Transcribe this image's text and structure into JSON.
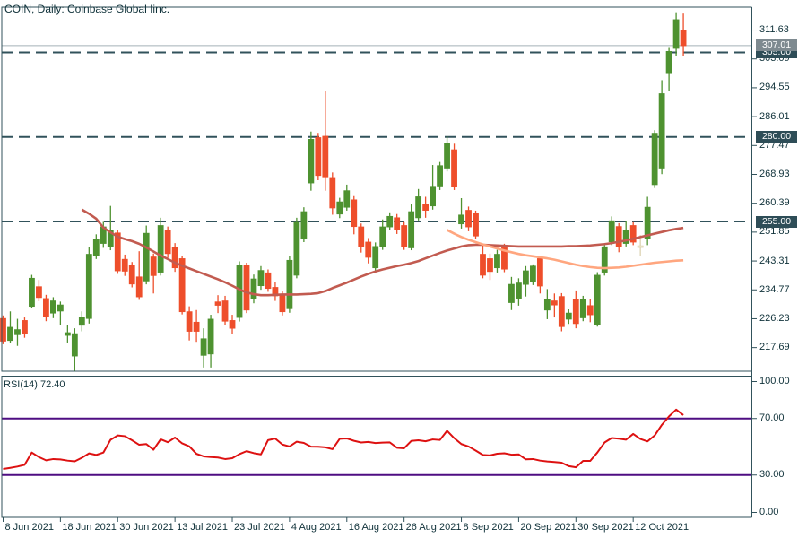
{
  "title": "COIN, Daily:  Coinbase Global Iinc.",
  "rsi_label": "RSI(14) 72.40",
  "price_scale": {
    "ticks": [
      "311.63",
      "303.09",
      "294.55",
      "286.01",
      "277.47",
      "268.93",
      "260.39",
      "251.85",
      "243.31",
      "234.77",
      "226.23",
      "217.69"
    ],
    "badges": {
      "current": {
        "label": "307.01"
      },
      "levels": [
        {
          "label": "305.00"
        },
        {
          "label": "280.00"
        },
        {
          "label": "255.00"
        }
      ]
    }
  },
  "time_scale": {
    "labels": [
      "8 Jun 2021",
      "18 Jun 2021",
      "30 Jun 2021",
      "13 Jul 2021",
      "23 Jul 2021",
      "4 Aug 2021",
      "16 Aug 2021",
      "26 Aug 2021",
      "8 Sep 2021",
      "20 Sep 2021",
      "30 Sep 2021",
      "12 Oct 2021"
    ],
    "indices": [
      0,
      8,
      16,
      24,
      32,
      40,
      48,
      56,
      64,
      72,
      80,
      88
    ]
  },
  "colors": {
    "background": "#ffffff",
    "frame": "#31525b",
    "axis_text": "#10323a",
    "bull": "#4e9230",
    "bear": "#ee4e2b",
    "pale_doji_fill": "#f3eeda",
    "pale_doji_edge": "#ddd3b2",
    "level_line": "#31525b",
    "current_line": "#a4b1b8",
    "badge_level_bg": "#2e4d57",
    "badge_current_bg": "#7e8a90",
    "ma_slow": "#c25b50",
    "ma_fast": "#ffa67f",
    "rsi_line": "#dd1111",
    "rsi_level": "#4e0d82"
  },
  "chart_data": {
    "type": "candlestick",
    "symbol": "COIN",
    "timeframe": "Daily",
    "company": "Coinbase Global Iinc.",
    "ylim": [
      210.7,
      318.4
    ],
    "levels_dashed": [
      305.0,
      280.0,
      255.0
    ],
    "current_price": 307.01,
    "dates": [
      "8 Jun 2021",
      "9 Jun 2021",
      "10 Jun 2021",
      "11 Jun 2021",
      "14 Jun 2021",
      "15 Jun 2021",
      "16 Jun 2021",
      "17 Jun 2021",
      "18 Jun 2021",
      "21 Jun 2021",
      "22 Jun 2021",
      "23 Jun 2021",
      "24 Jun 2021",
      "25 Jun 2021",
      "28 Jun 2021",
      "29 Jun 2021",
      "30 Jun 2021",
      "1 Jul 2021",
      "2 Jul 2021",
      "6 Jul 2021",
      "7 Jul 2021",
      "8 Jul 2021",
      "9 Jul 2021",
      "12 Jul 2021",
      "13 Jul 2021",
      "14 Jul 2021",
      "15 Jul 2021",
      "16 Jul 2021",
      "19 Jul 2021",
      "20 Jul 2021",
      "21 Jul 2021",
      "22 Jul 2021",
      "23 Jul 2021",
      "26 Jul 2021",
      "27 Jul 2021",
      "28 Jul 2021",
      "29 Jul 2021",
      "30 Jul 2021",
      "2 Aug 2021",
      "3 Aug 2021",
      "4 Aug 2021",
      "5 Aug 2021",
      "6 Aug 2021",
      "9 Aug 2021",
      "10 Aug 2021",
      "11 Aug 2021",
      "12 Aug 2021",
      "13 Aug 2021",
      "16 Aug 2021",
      "17 Aug 2021",
      "18 Aug 2021",
      "19 Aug 2021",
      "20 Aug 2021",
      "23 Aug 2021",
      "24 Aug 2021",
      "25 Aug 2021",
      "26 Aug 2021",
      "27 Aug 2021",
      "30 Aug 2021",
      "31 Aug 2021",
      "1 Sep 2021",
      "2 Sep 2021",
      "3 Sep 2021",
      "7 Sep 2021",
      "8 Sep 2021",
      "9 Sep 2021",
      "10 Sep 2021",
      "13 Sep 2021",
      "14 Sep 2021",
      "15 Sep 2021",
      "16 Sep 2021",
      "17 Sep 2021",
      "20 Sep 2021",
      "21 Sep 2021",
      "22 Sep 2021",
      "23 Sep 2021",
      "24 Sep 2021",
      "27 Sep 2021",
      "28 Sep 2021",
      "29 Sep 2021",
      "30 Sep 2021",
      "1 Oct 2021",
      "4 Oct 2021",
      "5 Oct 2021",
      "6 Oct 2021",
      "7 Oct 2021",
      "8 Oct 2021",
      "11 Oct 2021",
      "12 Oct 2021",
      "13 Oct 2021",
      "14 Oct 2021",
      "15 Oct 2021",
      "18 Oct 2021",
      "19 Oct 2021",
      "20 Oct 2021",
      "21 Oct 2021"
    ],
    "open": [
      226.3,
      219.8,
      221.5,
      225.7,
      229.9,
      235.7,
      232.2,
      227.9,
      228.5,
      221.3,
      215.2,
      224.3,
      226.3,
      244.9,
      248.5,
      247.6,
      251.6,
      243.8,
      242.0,
      238.6,
      237.4,
      244.5,
      240.0,
      252.3,
      247.2,
      244.0,
      228.3,
      225.2,
      215.4,
      215.8,
      231.2,
      231.5,
      225.7,
      226.6,
      241.9,
      232.2,
      236.0,
      239.8,
      235.5,
      233.2,
      229.2,
      239.1,
      249.8,
      266.4,
      279.8,
      280.2,
      268.0,
      257.2,
      259.2,
      261.4,
      253.4,
      248.9,
      241.3,
      247.6,
      253.4,
      256.1,
      253.8,
      247.2,
      256.1,
      260.1,
      259.6,
      265.5,
      270.8,
      276.2,
      254.3,
      258.3,
      257.4,
      245.3,
      244.0,
      241.3,
      247.6,
      231.0,
      232.3,
      236.4,
      237.3,
      244.0,
      228.8,
      231.5,
      232.8,
      226.1,
      231.9,
      226.5,
      230.1,
      224.5,
      240.0,
      249.0,
      253.5,
      248.5,
      253.8,
      247.3,
      249.8,
      265.9,
      270.8,
      299.0,
      306.2,
      311.5
    ],
    "high": [
      227.2,
      228.4,
      226.2,
      226.6,
      239.2,
      237.7,
      233.3,
      232.6,
      231.3,
      224.3,
      223.4,
      228.4,
      247.4,
      251.2,
      254.9,
      259.6,
      252.5,
      245.2,
      243.0,
      246.2,
      253.8,
      245.5,
      256.1,
      253.5,
      248.6,
      244.8,
      229.9,
      228.8,
      223.4,
      227.4,
      233.2,
      233.0,
      227.4,
      243.2,
      242.8,
      239.3,
      241.8,
      240.8,
      237.0,
      234.3,
      244.9,
      256.1,
      259.2,
      281.6,
      281.2,
      293.6,
      269.5,
      262.0,
      265.9,
      262.5,
      254.4,
      250.1,
      248.8,
      255.6,
      257.7,
      257.2,
      254.8,
      260.1,
      264.6,
      262.3,
      271.7,
      272.6,
      280.2,
      278.0,
      261.9,
      259.4,
      258.2,
      248.0,
      245.5,
      246.6,
      248.4,
      238.6,
      238.2,
      241.8,
      242.3,
      244.9,
      235.0,
      233.7,
      233.8,
      229.0,
      234.6,
      233.0,
      232.0,
      240.0,
      248.5,
      256.5,
      254.5,
      255.2,
      254.8,
      251.0,
      262.3,
      282.0,
      296.8,
      306.6,
      316.9,
      316.5
    ],
    "low": [
      218.7,
      219.0,
      218.2,
      220.6,
      229.3,
      231.4,
      225.5,
      226.4,
      224.3,
      219.2,
      210.4,
      222.5,
      224.8,
      243.9,
      247.2,
      246.5,
      239.5,
      238.9,
      235.5,
      231.8,
      236.4,
      233.7,
      239.0,
      244.3,
      240.1,
      227.5,
      219.8,
      219.4,
      211.8,
      211.8,
      227.9,
      224.4,
      221.6,
      225.4,
      227.9,
      230.8,
      234.8,
      234.2,
      231.5,
      227.2,
      228.0,
      238.2,
      248.9,
      264.1,
      267.2,
      264.1,
      257.0,
      256.0,
      258.2,
      251.2,
      245.8,
      242.6,
      240.3,
      246.6,
      252.4,
      251.3,
      246.6,
      246.5,
      255.3,
      256.1,
      258.5,
      264.3,
      269.8,
      264.3,
      252.9,
      252.1,
      249.8,
      238.2,
      237.7,
      239.9,
      240.0,
      228.8,
      230.1,
      232.8,
      236.2,
      233.7,
      226.1,
      226.6,
      222.5,
      224.7,
      223.4,
      225.5,
      225.2,
      223.9,
      239.0,
      248.0,
      245.9,
      247.6,
      248.0,
      244.9,
      248.0,
      264.9,
      269.0,
      293.6,
      303.9,
      304.0
    ],
    "close": [
      219.6,
      223.7,
      223.0,
      221.9,
      238.2,
      232.5,
      226.8,
      231.5,
      230.3,
      222.1,
      221.8,
      226.6,
      245.3,
      249.8,
      253.4,
      252.5,
      240.4,
      240.3,
      236.5,
      232.7,
      251.5,
      239.0,
      253.8,
      245.5,
      241.3,
      228.3,
      222.5,
      222.5,
      220.3,
      226.1,
      230.2,
      225.5,
      223.4,
      242.1,
      228.8,
      238.0,
      240.5,
      235.2,
      233.0,
      228.3,
      243.5,
      254.7,
      257.9,
      279.3,
      268.6,
      268.2,
      259.0,
      260.8,
      264.1,
      253.5,
      247.6,
      244.4,
      247.6,
      253.4,
      256.5,
      252.5,
      247.6,
      257.9,
      262.3,
      258.3,
      265.4,
      271.5,
      278.0,
      265.4,
      256.9,
      253.4,
      250.7,
      239.1,
      240.2,
      245.3,
      240.9,
      236.4,
      236.8,
      240.4,
      241.8,
      235.9,
      231.9,
      230.3,
      223.9,
      227.9,
      224.8,
      231.9,
      227.4,
      239.1,
      247.5,
      255.2,
      247.5,
      252.5,
      248.9,
      247.8,
      259.2,
      281.1,
      292.8,
      305.3,
      314.7,
      307.0
    ],
    "pale_doji_indices": [
      89
    ],
    "overlays": [
      {
        "name": "ma-slow",
        "start_index": 11,
        "values": [
          258.5,
          257.3,
          255.8,
          253.2,
          251.8,
          250.5,
          249.8,
          249.2,
          248.4,
          247.3,
          246.1,
          244.9,
          243.9,
          242.8,
          241.9,
          241.1,
          240.3,
          239.5,
          238.7,
          237.9,
          237.0,
          236.0,
          234.9,
          234.0,
          233.5,
          233.2,
          233.2,
          233.3,
          233.4,
          233.4,
          233.4,
          233.5,
          233.6,
          233.8,
          234.4,
          235.3,
          236.1,
          236.9,
          237.8,
          238.7,
          239.5,
          240.2,
          240.8,
          241.3,
          241.8,
          242.2,
          242.7,
          243.3,
          244.1,
          244.9,
          245.7,
          246.4,
          247.0,
          247.6,
          248.0,
          248.1,
          248.1,
          248.0,
          247.9,
          247.8,
          247.7,
          247.6,
          247.6,
          247.6,
          247.6,
          247.6,
          247.6,
          247.6,
          247.7,
          247.7,
          247.8,
          247.9,
          248.1,
          248.3,
          248.6,
          249.0,
          249.4,
          249.9,
          250.4,
          250.9,
          251.4,
          251.9,
          252.4,
          252.8,
          253.1
        ]
      },
      {
        "name": "ma-fast",
        "start_index": 62,
        "values": [
          252.5,
          251.4,
          250.4,
          249.6,
          248.9,
          248.2,
          247.6,
          247.0,
          246.4,
          245.9,
          245.4,
          245.0,
          244.7,
          244.4,
          244.1,
          243.7,
          243.2,
          242.7,
          242.2,
          241.8,
          241.5,
          241.3,
          241.2,
          241.3,
          241.4,
          241.6,
          241.9,
          242.2,
          242.5,
          242.8,
          243.0,
          243.2,
          243.4,
          243.5
        ]
      }
    ],
    "rsi": {
      "period": 14,
      "last": 72.4,
      "ylim": [
        0,
        100
      ],
      "levels": [
        70,
        30
      ],
      "scale_ticks": [
        "100.00",
        "70.00",
        "30.00",
        "0.00"
      ],
      "values": [
        34.3,
        35.1,
        36.0,
        37.2,
        45.9,
        42.7,
        40.4,
        41.3,
        41.0,
        40.2,
        39.7,
        42.2,
        45.3,
        44.2,
        45.9,
        54.9,
        58.0,
        57.5,
        54.6,
        51.4,
        51.9,
        47.9,
        55.3,
        53.2,
        56.5,
        52.4,
        50.3,
        45.0,
        43.2,
        42.7,
        42.4,
        41.3,
        41.9,
        44.8,
        46.9,
        45.5,
        44.6,
        54.7,
        55.8,
        51.6,
        50.2,
        53.6,
        52.7,
        50.1,
        50.0,
        49.6,
        48.3,
        55.6,
        55.9,
        54.2,
        53.0,
        53.4,
        52.6,
        52.9,
        53.1,
        49.3,
        48.9,
        54.1,
        54.6,
        53.9,
        55.2,
        54.8,
        61.3,
        56.1,
        51.9,
        50.2,
        47.3,
        44.2,
        43.9,
        45.1,
        45.4,
        44.4,
        44.6,
        41.1,
        41.3,
        40.2,
        39.6,
        39.2,
        38.7,
        36.3,
        35.5,
        40.0,
        40.0,
        46.0,
        53.0,
        56.2,
        55.7,
        55.0,
        59.1,
        55.5,
        53.8,
        58.0,
        65.5,
        71.5,
        76.3,
        72.4
      ]
    }
  }
}
